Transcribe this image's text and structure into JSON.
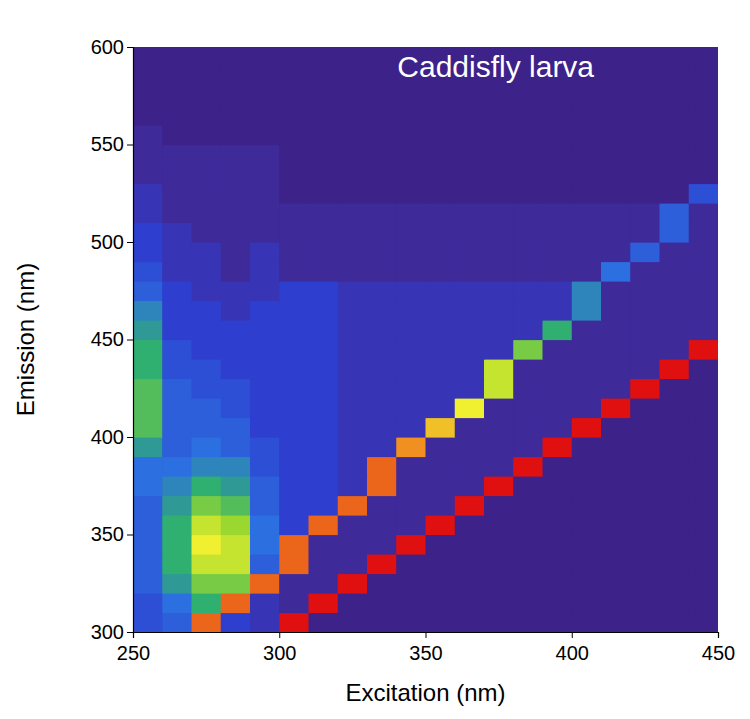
{
  "chart_data": {
    "type": "heatmap",
    "title": "Caddisfly larva",
    "x_label": "Excitation (nm)",
    "y_label": "Emission (nm)",
    "xlim": [
      250,
      450
    ],
    "ylim": [
      300,
      600
    ],
    "xticks": [
      250,
      300,
      350,
      400,
      450
    ],
    "yticks": [
      300,
      350,
      400,
      450,
      500,
      550,
      600
    ],
    "zlim": [
      0,
      10
    ],
    "x": [
      255,
      265,
      275,
      285,
      295,
      305,
      315,
      325,
      335,
      345,
      355,
      365,
      375,
      385,
      395,
      405,
      415,
      425,
      435,
      445
    ],
    "y": [
      305,
      315,
      325,
      335,
      345,
      355,
      365,
      375,
      385,
      395,
      405,
      415,
      425,
      435,
      445,
      455,
      465,
      475,
      485,
      495,
      505,
      515,
      525,
      535,
      545,
      555,
      565,
      575,
      585,
      595
    ],
    "values": [
      [
        2.5,
        3,
        9,
        2,
        1.5,
        10,
        0.5,
        0.5,
        0.5,
        0.5,
        0.5,
        0.5,
        0.5,
        0.5,
        0.5,
        0.5,
        0.5,
        0.5,
        0.5,
        0.5
      ],
      [
        2.5,
        3.5,
        5,
        9,
        1.5,
        1,
        10,
        0.5,
        0.5,
        0.5,
        0.5,
        0.5,
        0.5,
        0.5,
        0.5,
        0.5,
        0.5,
        0.5,
        0.5,
        0.5
      ],
      [
        3,
        4.5,
        6,
        6,
        9,
        1,
        1,
        10,
        0.5,
        0.5,
        0.5,
        0.5,
        0.5,
        0.5,
        0.5,
        0.5,
        0.5,
        0.5,
        0.5,
        0.5
      ],
      [
        3,
        5,
        7,
        7,
        3,
        9,
        1,
        1,
        10,
        0.5,
        0.5,
        0.5,
        0.5,
        0.5,
        0.5,
        0.5,
        0.5,
        0.5,
        0.5,
        0.5
      ],
      [
        3,
        5,
        7.5,
        7,
        3.5,
        9,
        1,
        1,
        1,
        10,
        0.5,
        0.5,
        0.5,
        0.5,
        0.5,
        0.5,
        0.5,
        0.5,
        0.5,
        0.5
      ],
      [
        3,
        5,
        7,
        6.5,
        3.5,
        2,
        9,
        1,
        1,
        1,
        10,
        0.5,
        0.5,
        0.5,
        0.5,
        0.5,
        0.5,
        0.5,
        0.5,
        0.5
      ],
      [
        3,
        4.5,
        6,
        5.5,
        3,
        2,
        2,
        9,
        1,
        1,
        1,
        10,
        0.5,
        0.5,
        0.5,
        0.5,
        0.5,
        0.5,
        0.5,
        0.5
      ],
      [
        3.5,
        4,
        5,
        4.5,
        3,
        2,
        2,
        1.5,
        9,
        1,
        1,
        1,
        10,
        0.5,
        0.5,
        0.5,
        0.5,
        0.5,
        0.5,
        0.5
      ],
      [
        3.5,
        3.5,
        4,
        4,
        2.5,
        2,
        2,
        1.5,
        9,
        1,
        1,
        1,
        1,
        10,
        0.5,
        0.5,
        0.5,
        0.5,
        0.5,
        0.5
      ],
      [
        4.5,
        3,
        3.5,
        3,
        2.5,
        2,
        2,
        1.5,
        1.5,
        8.5,
        1,
        1,
        1,
        1,
        10,
        0.5,
        0.5,
        0.5,
        0.5,
        0.5
      ],
      [
        5.5,
        3,
        3,
        3,
        2,
        2,
        2,
        1.5,
        1.5,
        1.5,
        8,
        1,
        1,
        1,
        1,
        10,
        0.5,
        0.5,
        0.5,
        0.5
      ],
      [
        5.5,
        3,
        3,
        2.5,
        2,
        2,
        2,
        1.5,
        1.5,
        1.5,
        1.5,
        7.5,
        1,
        1,
        1,
        1,
        10,
        0.5,
        0.5,
        0.5
      ],
      [
        5.5,
        3,
        2.5,
        2.5,
        2,
        2,
        2,
        1.5,
        1.5,
        1.5,
        1.5,
        1.5,
        7,
        1,
        1,
        1,
        1,
        10,
        0.5,
        0.5
      ],
      [
        5,
        2.5,
        2.5,
        2,
        2,
        2,
        2,
        1.5,
        1.5,
        1.5,
        1.5,
        1.5,
        7,
        1,
        1,
        1,
        1,
        1,
        10,
        0.5
      ],
      [
        5,
        2.5,
        2,
        2,
        2,
        2,
        2,
        1.5,
        1.5,
        1.5,
        1.5,
        1.5,
        1.5,
        6,
        1,
        1,
        1,
        1,
        1,
        10
      ],
      [
        4.5,
        2,
        2,
        2,
        2,
        2,
        2,
        1.5,
        1.5,
        1.5,
        1.5,
        1.5,
        1.5,
        1.5,
        5,
        1,
        1,
        1,
        1,
        1
      ],
      [
        4,
        2,
        2,
        1.5,
        2,
        2,
        2,
        1.5,
        1.5,
        1.5,
        1.5,
        1.5,
        1.5,
        1.5,
        1.5,
        4,
        1,
        1,
        1,
        1
      ],
      [
        3,
        2,
        1.5,
        1.5,
        1.5,
        2,
        2,
        1.5,
        1.5,
        1.5,
        1.5,
        1.5,
        1.5,
        1.5,
        1.5,
        4,
        1,
        1,
        1,
        1
      ],
      [
        2.5,
        1.5,
        1.5,
        1,
        1.5,
        1,
        1,
        1,
        1,
        1,
        1,
        1,
        1,
        1,
        1,
        1,
        3.5,
        1,
        1,
        1
      ],
      [
        2,
        1.5,
        1.5,
        1,
        1.5,
        1,
        1,
        1,
        1,
        1,
        1,
        1,
        1,
        1,
        1,
        1,
        1,
        3,
        1,
        1
      ],
      [
        2,
        1.5,
        1,
        1,
        1,
        1,
        1,
        1,
        1,
        1,
        1,
        1,
        1,
        1,
        1,
        1,
        1,
        1,
        3,
        1
      ],
      [
        1.5,
        1,
        1,
        1,
        1,
        1,
        1,
        1,
        1,
        1,
        1,
        1,
        1,
        1,
        1,
        1,
        1,
        1,
        3,
        1
      ],
      [
        1.5,
        1,
        1,
        1,
        1,
        0.5,
        0.5,
        0.5,
        0.5,
        0.5,
        0.5,
        0.5,
        0.5,
        0.5,
        0.5,
        0.5,
        0.5,
        0.5,
        0.5,
        2.5
      ],
      [
        1,
        1,
        1,
        1,
        1,
        0.5,
        0.5,
        0.5,
        0.5,
        0.5,
        0.5,
        0.5,
        0.5,
        0.5,
        0.5,
        0.5,
        0.5,
        0.5,
        0.5,
        0.5
      ],
      [
        1,
        1,
        1,
        1,
        1,
        0.5,
        0.5,
        0.5,
        0.5,
        0.5,
        0.5,
        0.5,
        0.5,
        0.5,
        0.5,
        0.5,
        0.5,
        0.5,
        0.5,
        0.5
      ],
      [
        1,
        0.5,
        0.5,
        0.5,
        0.5,
        0.5,
        0.5,
        0.5,
        0.5,
        0.5,
        0.5,
        0.5,
        0.5,
        0.5,
        0.5,
        0.5,
        0.5,
        0.5,
        0.5,
        0.5
      ],
      [
        0.5,
        0.5,
        0.5,
        0.5,
        0.5,
        0.5,
        0.5,
        0.5,
        0.5,
        0.5,
        0.5,
        0.5,
        0.5,
        0.5,
        0.5,
        0.5,
        0.5,
        0.5,
        0.5,
        0.5
      ],
      [
        0.5,
        0.5,
        0.5,
        0.5,
        0.5,
        0.5,
        0.5,
        0.5,
        0.5,
        0.5,
        0.5,
        0.5,
        0.5,
        0.5,
        0.5,
        0.5,
        0.5,
        0.5,
        0.5,
        0.5
      ],
      [
        0.5,
        0.5,
        0.5,
        0.5,
        0.5,
        0.5,
        0.5,
        0.5,
        0.5,
        0.5,
        0.5,
        0.5,
        0.5,
        0.5,
        0.5,
        0.5,
        0.5,
        0.5,
        0.5,
        0.5
      ],
      [
        0.5,
        0.5,
        0.5,
        0.5,
        0.5,
        0.5,
        0.5,
        0.5,
        0.5,
        0.5,
        0.5,
        0.5,
        0.5,
        0.5,
        0.5,
        0.5,
        0.5,
        0.5,
        0.5,
        0.5
      ]
    ]
  }
}
